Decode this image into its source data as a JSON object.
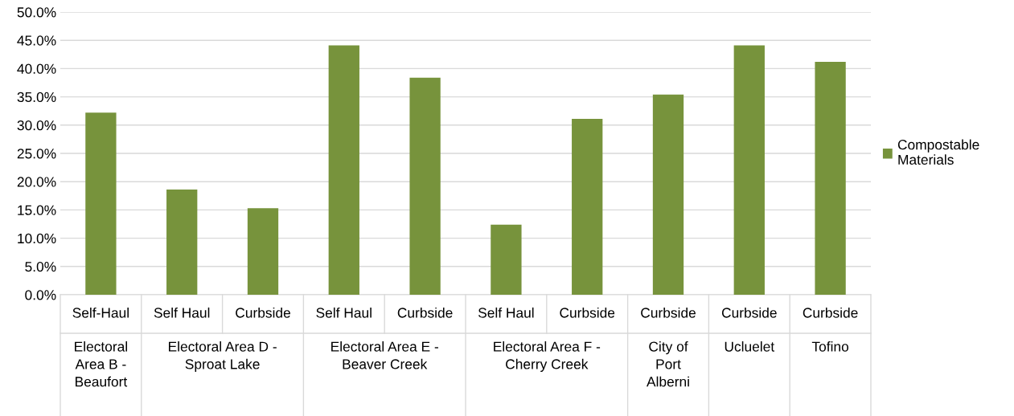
{
  "chart_data": {
    "type": "bar",
    "categories": [
      "Self-Haul",
      "Self Haul",
      "Curbside",
      "Self Haul",
      "Curbside",
      "Self Haul",
      "Curbside",
      "Curbside",
      "Curbside",
      "Curbside"
    ],
    "annotations": [
      "Electoral\nArea B -\nBeaufort",
      "Electoral Area D -\nSproat Lake",
      "Electoral Area E -\nBeaver Creek",
      "Electoral Area F -\nCherry Creek",
      "City of\nPort\nAlberni",
      "Ucluelet",
      "Tofino"
    ],
    "series": [
      {
        "name": "Compostable\nMaterials",
        "color": "#77933c",
        "values": [
          32.2,
          18.6,
          15.3,
          44.1,
          38.4,
          12.4,
          31.1,
          35.4,
          44.1,
          41.2
        ]
      }
    ],
    "ylim": [
      0,
      50
    ],
    "yticks": [
      {
        "value": 0,
        "label": "0.0%"
      },
      {
        "value": 5,
        "label": "5.0%"
      },
      {
        "value": 10,
        "label": "10.0%"
      },
      {
        "value": 15,
        "label": "15.0%"
      },
      {
        "value": 20,
        "label": "20.0%"
      },
      {
        "value": 25,
        "label": "25.0%"
      },
      {
        "value": 30,
        "label": "30.0%"
      },
      {
        "value": 35,
        "label": "35.0%"
      },
      {
        "value": 40,
        "label": "40.0%"
      },
      {
        "value": 45,
        "label": "45.0%"
      },
      {
        "value": 50,
        "label": "50.0%"
      }
    ],
    "grid": "y",
    "legend": "right"
  }
}
